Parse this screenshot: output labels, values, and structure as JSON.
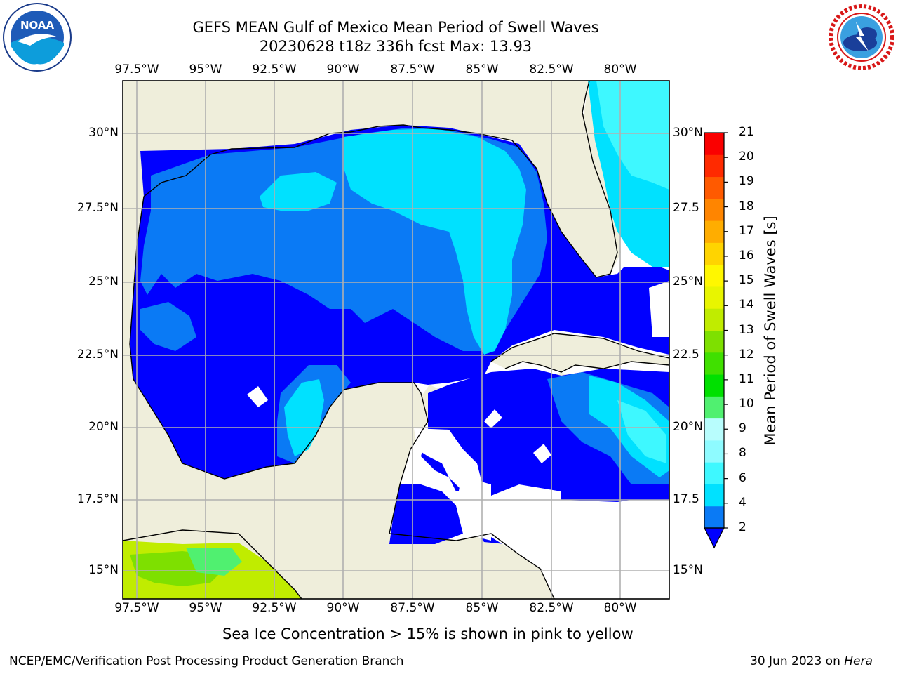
{
  "header": {
    "title_line1": "GEFS MEAN Gulf of Mexico Mean Period of Swell Waves",
    "title_line2": "20230628 t18z 336h fcst   Max: 13.93"
  },
  "map": {
    "lon_ticks": [
      "97.5°W",
      "95°W",
      "92.5°W",
      "90°W",
      "87.5°W",
      "85°W",
      "82.5°W",
      "80°W"
    ],
    "lat_ticks": [
      "30°N",
      "27.5°N",
      "25°N",
      "22.5°N",
      "20°N",
      "17.5°N",
      "15°N"
    ],
    "lat_ticks_right": [
      "30°N",
      "27.5",
      "25°N",
      "22.5",
      "20°N",
      "17.5",
      "15°N"
    ],
    "land_color": "#efeedb",
    "gridline_color": "#b0b0b0"
  },
  "colorbar": {
    "title": "Mean Period of Swell Waves [s]",
    "labels": [
      "2",
      "4",
      "6",
      "8",
      "9",
      "10",
      "11",
      "12",
      "13",
      "14",
      "15",
      "16",
      "17",
      "18",
      "19",
      "20",
      "21"
    ],
    "colors": [
      "#0a7af5",
      "#00e1ff",
      "#3ef8ff",
      "#8efbff",
      "#b8fdfd",
      "#50f070",
      "#00e000",
      "#40e000",
      "#7ee000",
      "#c0ec00",
      "#e8f500",
      "#fff700",
      "#ffd400",
      "#ffad00",
      "#ff8500",
      "#ff5a00",
      "#ff2a00",
      "#fa0000"
    ],
    "under_color": "#0000ff"
  },
  "notes": {
    "sea_ice": "Sea Ice Concentration > 15% is shown in pink to yellow"
  },
  "footer": {
    "left": "NCEP/EMC/Verification Post Processing Product Generation Branch",
    "right_date": "30 Jun 2023 on ",
    "right_machine": "Hera"
  },
  "logos": {
    "noaa": "NOAA",
    "nws": "NATIONAL WEATHER SERVICE"
  }
}
